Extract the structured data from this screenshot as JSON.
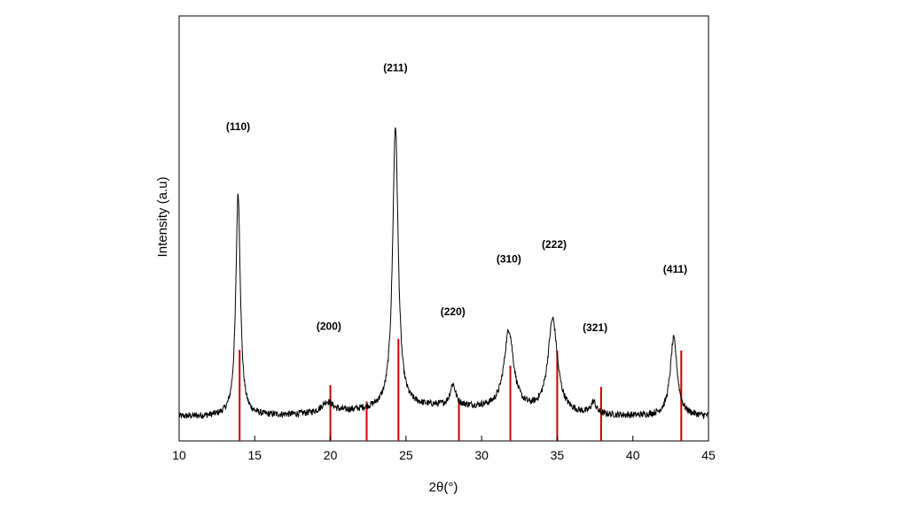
{
  "chart_data": {
    "type": "line",
    "title": "",
    "xlabel": "2θ(°)",
    "ylabel": "Intensity (a.u)",
    "xlim": [
      10,
      45
    ],
    "x_ticks": [
      "10",
      "15",
      "20",
      "25",
      "30",
      "35",
      "40",
      "45"
    ],
    "y_ticks_shown": false,
    "grid": false,
    "series": [
      {
        "color": "#000000",
        "baseline": 4.0,
        "noise": 0.55,
        "peaks": [
          {
            "x": 13.9,
            "height": 36.7,
            "width": 0.18
          },
          {
            "x": 19.8,
            "height": 1.8,
            "width": 0.45
          },
          {
            "x": 24.3,
            "height": 46.4,
            "width": 0.22
          },
          {
            "x": 28.1,
            "height": 3.5,
            "width": 0.22
          },
          {
            "x": 31.8,
            "height": 13.0,
            "width": 0.38
          },
          {
            "x": 34.7,
            "height": 15.4,
            "width": 0.38
          },
          {
            "x": 37.4,
            "height": 2.0,
            "width": 0.2
          },
          {
            "x": 42.7,
            "height": 12.8,
            "width": 0.28
          }
        ]
      }
    ],
    "reference_lines": {
      "color": "#cc0000",
      "lines": [
        {
          "x": 14.0,
          "height": 15.0
        },
        {
          "x": 20.0,
          "height": 9.2
        },
        {
          "x": 22.4,
          "height": 6.5
        },
        {
          "x": 24.5,
          "height": 16.8
        },
        {
          "x": 28.5,
          "height": 6.6
        },
        {
          "x": 31.9,
          "height": 12.4
        },
        {
          "x": 35.0,
          "height": 14.9
        },
        {
          "x": 37.9,
          "height": 8.9
        },
        {
          "x": 43.2,
          "height": 14.9
        }
      ]
    },
    "peak_labels": [
      {
        "text": "(110)",
        "x": 13.9,
        "y": 51.2
      },
      {
        "text": "(200)",
        "x": 19.9,
        "y": 18.3
      },
      {
        "text": "(211)",
        "x": 24.3,
        "y": 60.9
      },
      {
        "text": "(220)",
        "x": 28.1,
        "y": 20.7
      },
      {
        "text": "(310)",
        "x": 31.8,
        "y": 29.4
      },
      {
        "text": "(222)",
        "x": 34.8,
        "y": 31.8
      },
      {
        "text": "(321)",
        "x": 37.5,
        "y": 18.1
      },
      {
        "text": "(411)",
        "x": 42.8,
        "y": 27.7
      }
    ]
  }
}
